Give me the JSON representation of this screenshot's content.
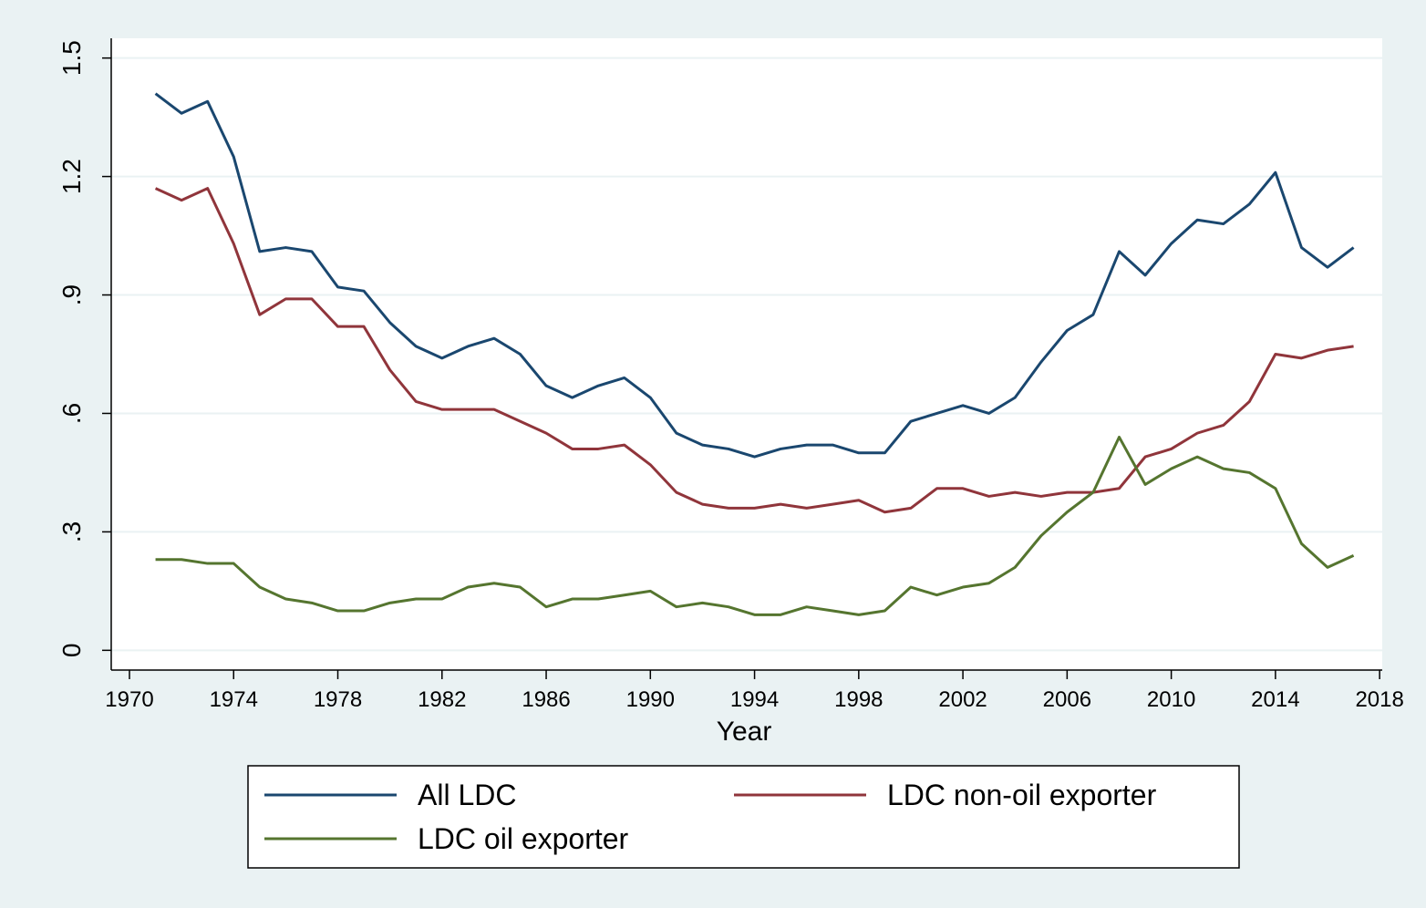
{
  "chart_data": {
    "type": "line",
    "xlabel": "Year",
    "x": [
      1971,
      1972,
      1973,
      1974,
      1975,
      1976,
      1977,
      1978,
      1979,
      1980,
      1981,
      1982,
      1983,
      1984,
      1985,
      1986,
      1987,
      1988,
      1989,
      1990,
      1991,
      1992,
      1993,
      1994,
      1995,
      1996,
      1997,
      1998,
      1999,
      2000,
      2001,
      2002,
      2003,
      2004,
      2005,
      2006,
      2007,
      2008,
      2009,
      2010,
      2011,
      2012,
      2013,
      2014,
      2015,
      2016,
      2017
    ],
    "series": [
      {
        "name": "All LDC",
        "color": "#1a476f",
        "values": [
          1.41,
          1.36,
          1.39,
          1.25,
          1.01,
          1.02,
          1.01,
          0.92,
          0.91,
          0.83,
          0.77,
          0.74,
          0.77,
          0.79,
          0.75,
          0.67,
          0.64,
          0.67,
          0.69,
          0.64,
          0.55,
          0.52,
          0.51,
          0.49,
          0.51,
          0.52,
          0.52,
          0.5,
          0.5,
          0.58,
          0.6,
          0.62,
          0.6,
          0.64,
          0.73,
          0.81,
          0.85,
          1.01,
          0.95,
          1.03,
          1.09,
          1.08,
          1.13,
          1.21,
          1.02,
          0.97,
          1.02
        ]
      },
      {
        "name": "LDC non-oil exporter",
        "color": "#90353b",
        "values": [
          1.17,
          1.14,
          1.17,
          1.03,
          0.85,
          0.89,
          0.89,
          0.82,
          0.82,
          0.71,
          0.63,
          0.61,
          0.61,
          0.61,
          0.58,
          0.55,
          0.51,
          0.51,
          0.52,
          0.47,
          0.4,
          0.37,
          0.36,
          0.36,
          0.37,
          0.36,
          0.37,
          0.38,
          0.35,
          0.36,
          0.41,
          0.41,
          0.39,
          0.4,
          0.39,
          0.4,
          0.4,
          0.41,
          0.49,
          0.51,
          0.55,
          0.57,
          0.63,
          0.75,
          0.74,
          0.76,
          0.77
        ]
      },
      {
        "name": "LDC oil exporter",
        "color": "#55752f",
        "values": [
          0.23,
          0.23,
          0.22,
          0.22,
          0.16,
          0.13,
          0.12,
          0.1,
          0.1,
          0.12,
          0.13,
          0.13,
          0.16,
          0.17,
          0.16,
          0.11,
          0.13,
          0.13,
          0.14,
          0.15,
          0.11,
          0.12,
          0.11,
          0.09,
          0.09,
          0.11,
          0.1,
          0.09,
          0.1,
          0.16,
          0.14,
          0.16,
          0.17,
          0.21,
          0.29,
          0.35,
          0.4,
          0.54,
          0.42,
          0.46,
          0.49,
          0.46,
          0.45,
          0.41,
          0.27,
          0.21,
          0.24
        ]
      }
    ],
    "xlim": [
      1969.3,
      2018.1
    ],
    "xticks": [
      1970,
      1974,
      1978,
      1982,
      1986,
      1990,
      1994,
      1998,
      2002,
      2006,
      2010,
      2014,
      2018
    ],
    "ylim": [
      -0.05,
      1.55
    ],
    "yticks": [
      0,
      {
        "value": 0.3,
        "label": ".3"
      },
      {
        "value": 0.6,
        "label": ".6"
      },
      {
        "value": 0.9,
        "label": ".9"
      },
      1.2,
      1.5
    ],
    "grid": true,
    "legend": "bottom"
  }
}
